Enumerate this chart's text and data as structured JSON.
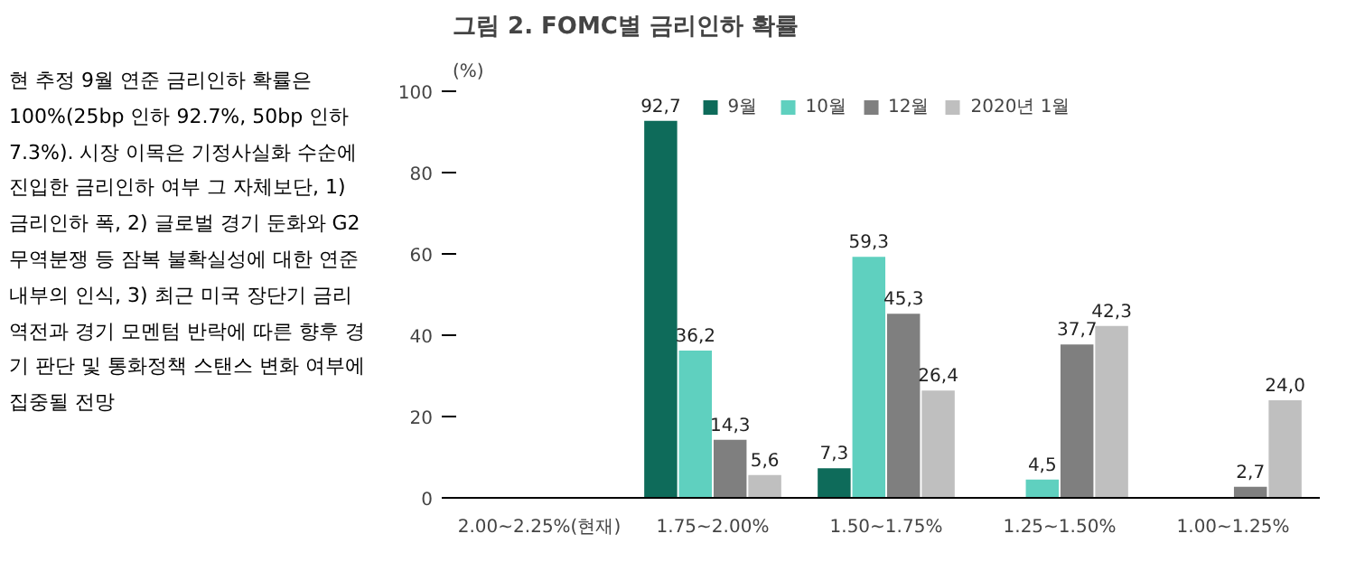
{
  "chart_data": {
    "type": "bar",
    "title": "그림 2. FOMC별 금리인하 확률",
    "ylabel": "(%)",
    "annotations": [
      "현 추정 9월 연준 금리인하 확률은 100%(25bp 인하 92.7%, 50bp 인하 7.3%). 시장 이목은 기정사실화 수순에 진입한 금리인하 여부 그 자체보단, 1) 금리인하 폭, 2) 글로벌 경기 둔화와 G2 무역분쟁 등 잠복 불확실성에 대한 연준 내부의 인식, 3) 최근 미국 장단기 금리역전과 경기 모멘텀 반락에 따른 향후 경기 판단 및 통화정책 스탠스 변화 여부에 집중될 전망"
    ],
    "categories": [
      "2.00~2.25%(현재)",
      "1.75~2.00%",
      "1.50~1.75%",
      "1.25~1.50%",
      "1.00~1.25%"
    ],
    "series": [
      {
        "name": "9월",
        "color": "#0e6b5a",
        "values": [
          null,
          92.7,
          7.3,
          null,
          null
        ],
        "value_labels": [
          null,
          "92,7",
          "7,3",
          null,
          null
        ]
      },
      {
        "name": "10월",
        "color": "#5fd0bf",
        "values": [
          null,
          36.2,
          59.3,
          4.5,
          null
        ],
        "value_labels": [
          null,
          "36,2",
          "59,3",
          "4,5",
          null
        ]
      },
      {
        "name": "12월",
        "color": "#7f7f7f",
        "values": [
          null,
          14.3,
          45.3,
          37.7,
          2.7
        ],
        "value_labels": [
          null,
          "14,3",
          "45,3",
          "37,7",
          "2,7"
        ]
      },
      {
        "name": "2020년 1월",
        "color": "#bfbfbf",
        "values": [
          null,
          5.6,
          26.4,
          42.3,
          24.0
        ],
        "value_labels": [
          null,
          "5,6",
          "26,4",
          "42,3",
          "24,0"
        ]
      }
    ],
    "ylim": [
      0,
      100
    ],
    "yticks": [
      0,
      20,
      40,
      60,
      80,
      100
    ],
    "grid": false,
    "legend": "top"
  }
}
